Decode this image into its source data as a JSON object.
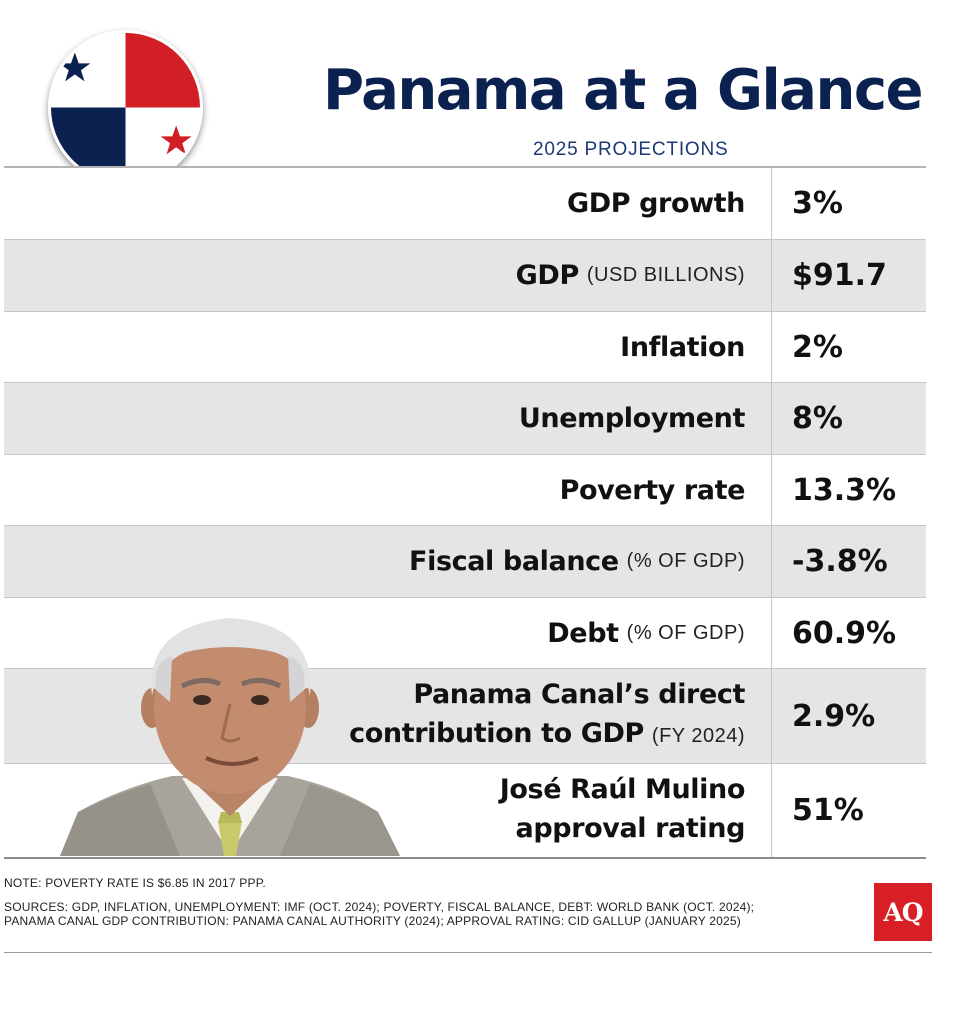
{
  "header": {
    "title": "Panama at a Glance",
    "subtitle": "2025 PROJECTIONS"
  },
  "flag": {
    "icon": "panama-flag-icon",
    "red": "#d21f26",
    "blue": "#0b2150"
  },
  "rows": [
    {
      "label": "GDP growth",
      "sub": "",
      "value": "3%"
    },
    {
      "label": "GDP",
      "sub": "(USD BILLIONS)",
      "value": "$91.7"
    },
    {
      "label": "Inflation",
      "sub": "",
      "value": "2%"
    },
    {
      "label": "Unemployment",
      "sub": "",
      "value": "8%"
    },
    {
      "label": "Poverty rate",
      "sub": "",
      "value": "13.3%"
    },
    {
      "label": "Fiscal balance",
      "sub": "(% OF GDP)",
      "value": "-3.8%"
    },
    {
      "label": "Debt",
      "sub": "(% OF GDP)",
      "value": "60.9%"
    },
    {
      "label_line1": "Panama Canal’s direct",
      "label_line2": "contribution to GDP",
      "sub": "(FY 2024)",
      "value": "2.9%"
    },
    {
      "label_line1": "José Raúl Mulino",
      "label_line2": "approval rating",
      "value": "51%"
    }
  ],
  "portrait": {
    "icon": "president-portrait-icon"
  },
  "notes": {
    "note": "NOTE: POVERTY RATE IS $6.85 IN 2017 PPP.",
    "sources": "SOURCES: GDP, INFLATION, UNEMPLOYMENT: IMF (OCT. 2024); POVERTY, FISCAL BALANCE, DEBT: WORLD BANK (OCT. 2024); PANAMA CANAL GDP CONTRIBUTION: PANAMA CANAL AUTHORITY (2024); APPROVAL RATING: CID GALLUP (JANUARY 2025)"
  },
  "logo": {
    "text": "AQ",
    "color": "#d81f26"
  }
}
